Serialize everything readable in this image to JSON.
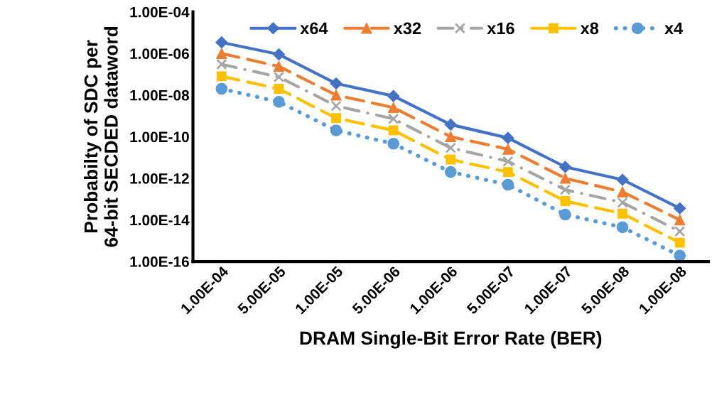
{
  "chart_data": {
    "type": "line",
    "xlabel": "DRAM Single-Bit Error Rate (BER)",
    "ylabel": "Probabilty of SDC per\n64-bit SECDED dataword",
    "categories": [
      "1.00E-04",
      "5.00E-05",
      "1.00E-05",
      "5.00E-06",
      "1.00E-06",
      "5.00E-07",
      "1.00E-07",
      "5.00E-08",
      "1.00E-08"
    ],
    "series": [
      {
        "name": "x64",
        "color": "#4472c4",
        "marker": "diamond",
        "line_style": "solid",
        "values": [
          3.4e-06,
          9e-07,
          3.6e-08,
          9e-09,
          3.8e-10,
          8.7e-11,
          3.5e-12,
          8.5e-13,
          3.6e-14
        ]
      },
      {
        "name": "x32",
        "color": "#ed7d31",
        "marker": "triangle",
        "line_style": "dashed",
        "values": [
          1e-06,
          2.4e-07,
          1e-08,
          2.5e-09,
          1e-10,
          2.5e-11,
          1e-12,
          2.2e-13,
          1e-14
        ]
      },
      {
        "name": "x16",
        "color": "#a5a5a5",
        "marker": "cross",
        "line_style": "dashdot",
        "values": [
          3e-07,
          7.4e-08,
          3e-09,
          7.2e-10,
          2.9e-11,
          6.5e-12,
          2.8e-13,
          6.8e-14,
          2.8e-15
        ]
      },
      {
        "name": "x8",
        "color": "#ffc000",
        "marker": "square",
        "line_style": "dashed",
        "values": [
          8e-08,
          2e-08,
          7.8e-10,
          2e-10,
          8e-12,
          2e-12,
          8e-14,
          2e-14,
          8e-16
        ]
      },
      {
        "name": "x4",
        "color": "#5b9bd5",
        "marker": "circle",
        "line_style": "dotted",
        "values": [
          2e-08,
          4.7e-09,
          2e-10,
          4.6e-11,
          2e-12,
          4.9e-13,
          1.8e-14,
          4.4e-15,
          1.9e-16
        ]
      }
    ],
    "log": "y",
    "ylim": [
      1e-16,
      0.0001
    ],
    "yticks": [
      {
        "value": 1e-16,
        "label": "1.00E-16"
      },
      {
        "value": 1e-14,
        "label": "1.00E-14"
      },
      {
        "value": 1e-12,
        "label": "1.00E-12"
      },
      {
        "value": 1e-10,
        "label": "1.00E-10"
      },
      {
        "value": 1e-08,
        "label": "1.00E-08"
      },
      {
        "value": 1e-06,
        "label": "1.00E-06"
      },
      {
        "value": 0.0001,
        "label": "1.00E-04"
      }
    ],
    "grid": false,
    "legend": "top right"
  }
}
